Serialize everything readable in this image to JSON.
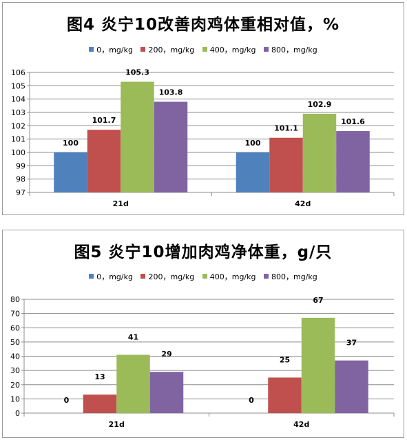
{
  "colors": {
    "series": [
      "#4f81bd",
      "#c0504d",
      "#9bbb59",
      "#8064a2"
    ],
    "grid": "#8c8c8c",
    "axis": "#8c8c8c"
  },
  "chart_data": [
    {
      "type": "bar",
      "title": "图4 炎宁10改善肉鸡体重相对值，%",
      "categories": [
        "21d",
        "42d"
      ],
      "series": [
        {
          "name": "0，mg/kg",
          "values": [
            100,
            100
          ]
        },
        {
          "name": "200，mg/kg",
          "values": [
            101.7,
            101.1
          ]
        },
        {
          "name": "400，mg/kg",
          "values": [
            105.3,
            102.9
          ]
        },
        {
          "name": "800，mg/kg",
          "values": [
            103.8,
            101.6
          ]
        }
      ],
      "ylim": [
        97,
        106
      ],
      "yticks": [
        97,
        98,
        99,
        100,
        101,
        102,
        103,
        104,
        105,
        106
      ],
      "grid": true,
      "legend": "top",
      "data_labels": true
    },
    {
      "type": "bar",
      "title": "图5 炎宁10增加肉鸡净体重，g/只",
      "categories": [
        "21d",
        "42d"
      ],
      "series": [
        {
          "name": "0，mg/kg",
          "values": [
            0,
            0
          ]
        },
        {
          "name": "200，mg/kg",
          "values": [
            13,
            25
          ]
        },
        {
          "name": "400，mg/kg",
          "values": [
            41,
            67
          ]
        },
        {
          "name": "800，mg/kg",
          "values": [
            29,
            37
          ]
        }
      ],
      "ylim": [
        0,
        80
      ],
      "yticks": [
        0,
        10,
        20,
        30,
        40,
        50,
        60,
        70,
        80
      ],
      "grid": true,
      "legend": "top",
      "data_labels": true
    }
  ]
}
